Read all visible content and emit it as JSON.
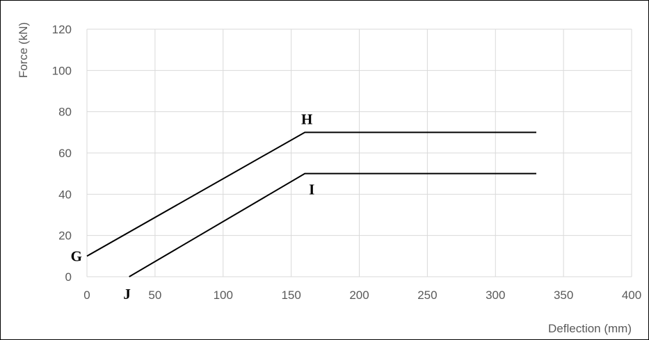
{
  "chart_data": {
    "type": "line",
    "xlabel": "Deflection (mm)",
    "ylabel": "Force (kN)",
    "xlim": [
      0,
      400
    ],
    "ylim": [
      0,
      120
    ],
    "xticks": [
      "0",
      "50",
      "100",
      "150",
      "200",
      "250",
      "300",
      "350",
      "400"
    ],
    "yticks": [
      "0",
      "20",
      "40",
      "60",
      "80",
      "100",
      "120"
    ],
    "grid": true,
    "legend": "none",
    "series": [
      {
        "x": [
          0,
          160,
          330
        ],
        "y": [
          10,
          70,
          70
        ],
        "color": "#000000"
      },
      {
        "x": [
          31,
          160,
          330
        ],
        "y": [
          0,
          50,
          50
        ],
        "color": "#000000"
      }
    ],
    "annotations": [
      {
        "text": "G",
        "x": 0,
        "y": 10
      },
      {
        "text": "H",
        "x": 160,
        "y": 70
      },
      {
        "text": "I",
        "x": 160,
        "y": 50
      },
      {
        "text": "J",
        "x": 31,
        "y": 0
      }
    ]
  }
}
